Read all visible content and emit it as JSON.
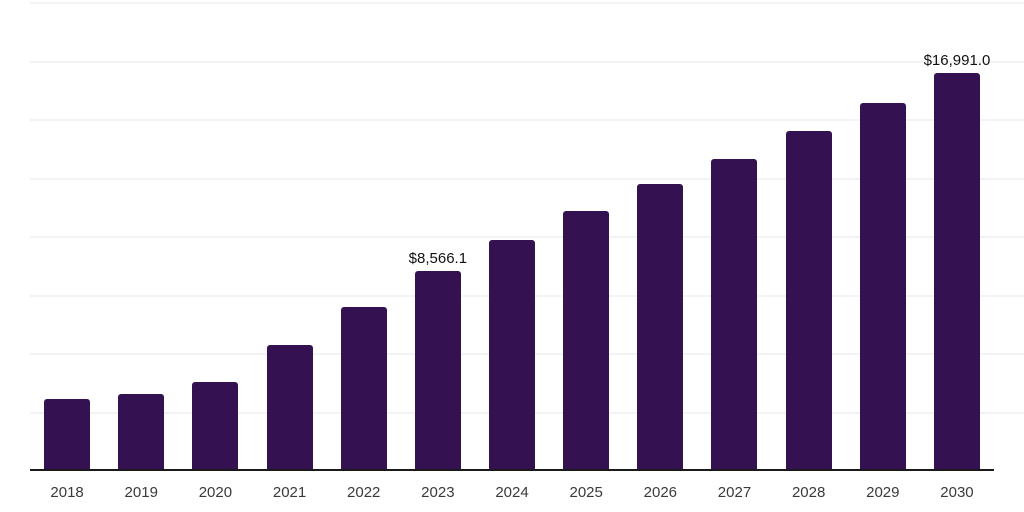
{
  "chart_data": {
    "type": "bar",
    "title": "",
    "xlabel": "",
    "ylabel": "",
    "legend_position": "none",
    "categories": [
      "2018",
      "2019",
      "2020",
      "2021",
      "2022",
      "2023",
      "2024",
      "2025",
      "2026",
      "2027",
      "2028",
      "2029",
      "2030"
    ],
    "values": [
      3070,
      3290,
      3790,
      5370,
      7030,
      8566.1,
      9880,
      11120,
      12270,
      13350,
      14510,
      15730,
      16991.0
    ],
    "data_labels": [
      "",
      "",
      "",
      "",
      "",
      "$8,566.1",
      "",
      "",
      "",
      "",
      "",
      "",
      "$16,991.0"
    ],
    "ylim": [
      0,
      20000
    ],
    "gridline_count": 8,
    "grid_on": true,
    "bar_color": "#341150",
    "gridline_color": "#f3f3f3",
    "axis_line_color": "#1a1a1a",
    "data_label_color": "#111111",
    "tick_label_color": "#3a3a3a"
  }
}
